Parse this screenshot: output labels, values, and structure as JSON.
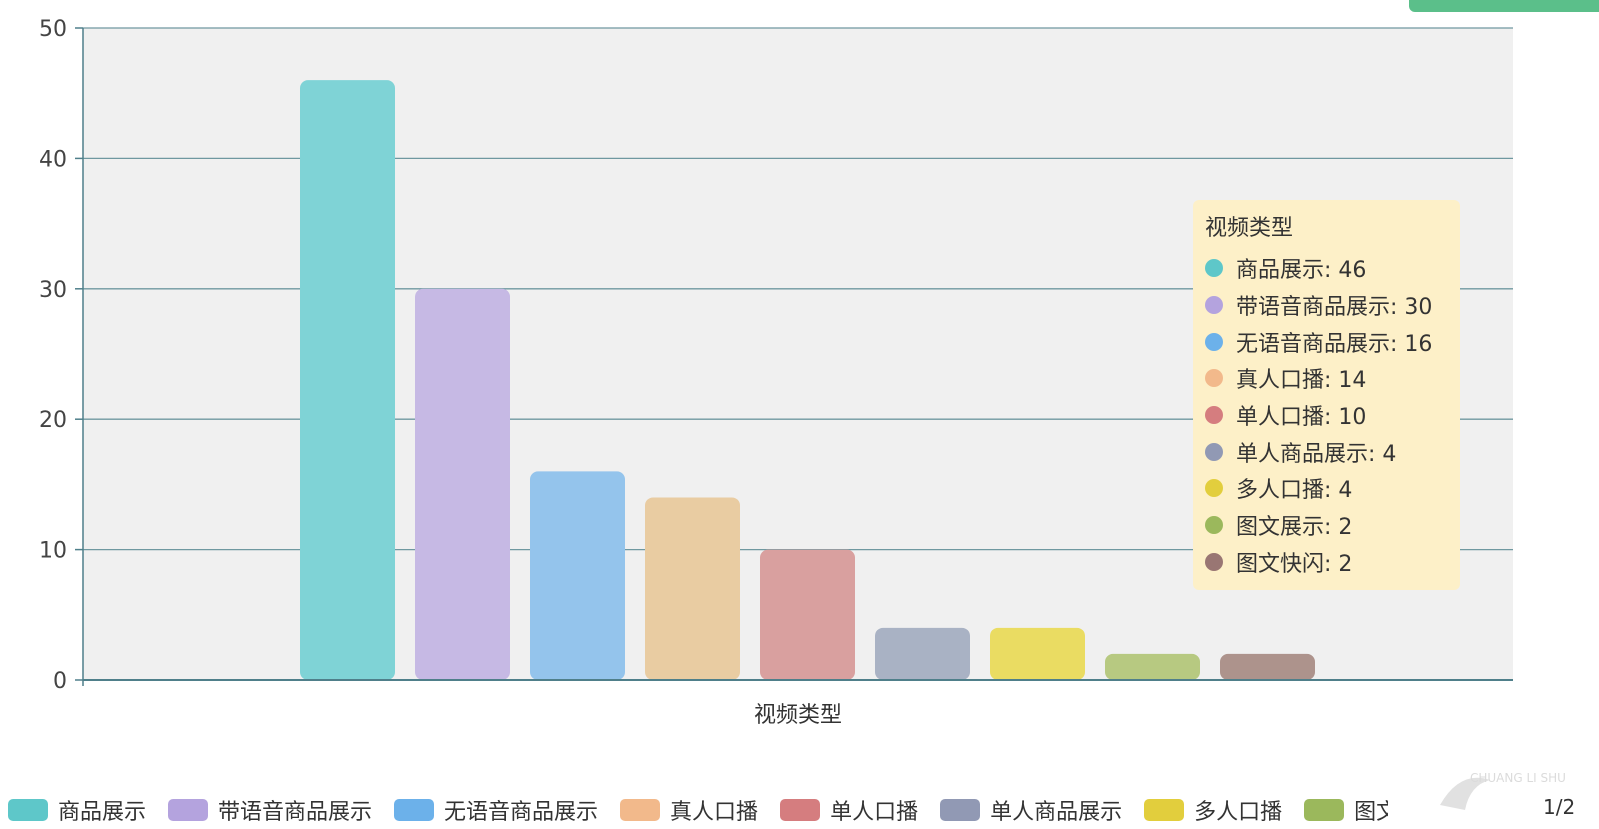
{
  "chart_data": {
    "type": "bar",
    "xlabel": "视频类型",
    "ylabel": "",
    "ylim": [
      0,
      50
    ],
    "yticks": [
      0,
      10,
      20,
      30,
      40,
      50
    ],
    "grid": true,
    "series": [
      {
        "name": "商品展示",
        "value": 46,
        "color": "#7fd3d6",
        "dot_color": "#5ec7c9"
      },
      {
        "name": "带语音商品展示",
        "value": 30,
        "color": "#c6b9e4",
        "dot_color": "#b4a3de"
      },
      {
        "name": "无语音商品展示",
        "value": 16,
        "color": "#94c4ec",
        "dot_color": "#6cb1ea"
      },
      {
        "name": "真人口播",
        "value": 14,
        "color": "#e9cca2",
        "dot_color": "#f2b98b"
      },
      {
        "name": "单人口播",
        "value": 10,
        "color": "#d9a09f",
        "dot_color": "#d57d7f"
      },
      {
        "name": "单人商品展示",
        "value": 4,
        "color": "#a9b2c4",
        "dot_color": "#9199b4"
      },
      {
        "name": "多人口播",
        "value": 4,
        "color": "#eadc62",
        "dot_color": "#e2ce3d"
      },
      {
        "name": "图文展示",
        "value": 2,
        "color": "#b7c981",
        "dot_color": "#9bb85c"
      },
      {
        "name": "图文快闪",
        "value": 2,
        "color": "#ad938c",
        "dot_color": "#997673"
      }
    ]
  },
  "tooltip": {
    "title": "视频类型",
    "rows": [
      "商品展示: 46",
      "带语音商品展示: 30",
      "无语音商品展示: 16",
      "真人口播: 14",
      "单人口播: 10",
      "单人商品展示: 4",
      "多人口播: 4",
      "图文展示: 2",
      "图文快闪: 2"
    ]
  },
  "legend": {
    "items": [
      {
        "label": "商品展示",
        "color": "#5ec7c9"
      },
      {
        "label": "带语音商品展示",
        "color": "#b4a3de"
      },
      {
        "label": "无语音商品展示",
        "color": "#6cb1ea"
      },
      {
        "label": "真人口播",
        "color": "#f2b98b"
      },
      {
        "label": "单人口播",
        "color": "#d57d7f"
      },
      {
        "label": "单人商品展示",
        "color": "#9199b4"
      },
      {
        "label": "多人口播",
        "color": "#e2ce3d"
      },
      {
        "label": "图文展",
        "color": "#9bb85c"
      }
    ],
    "page": "1/2"
  },
  "watermark": {
    "text": "CHUANG LI SHU"
  }
}
